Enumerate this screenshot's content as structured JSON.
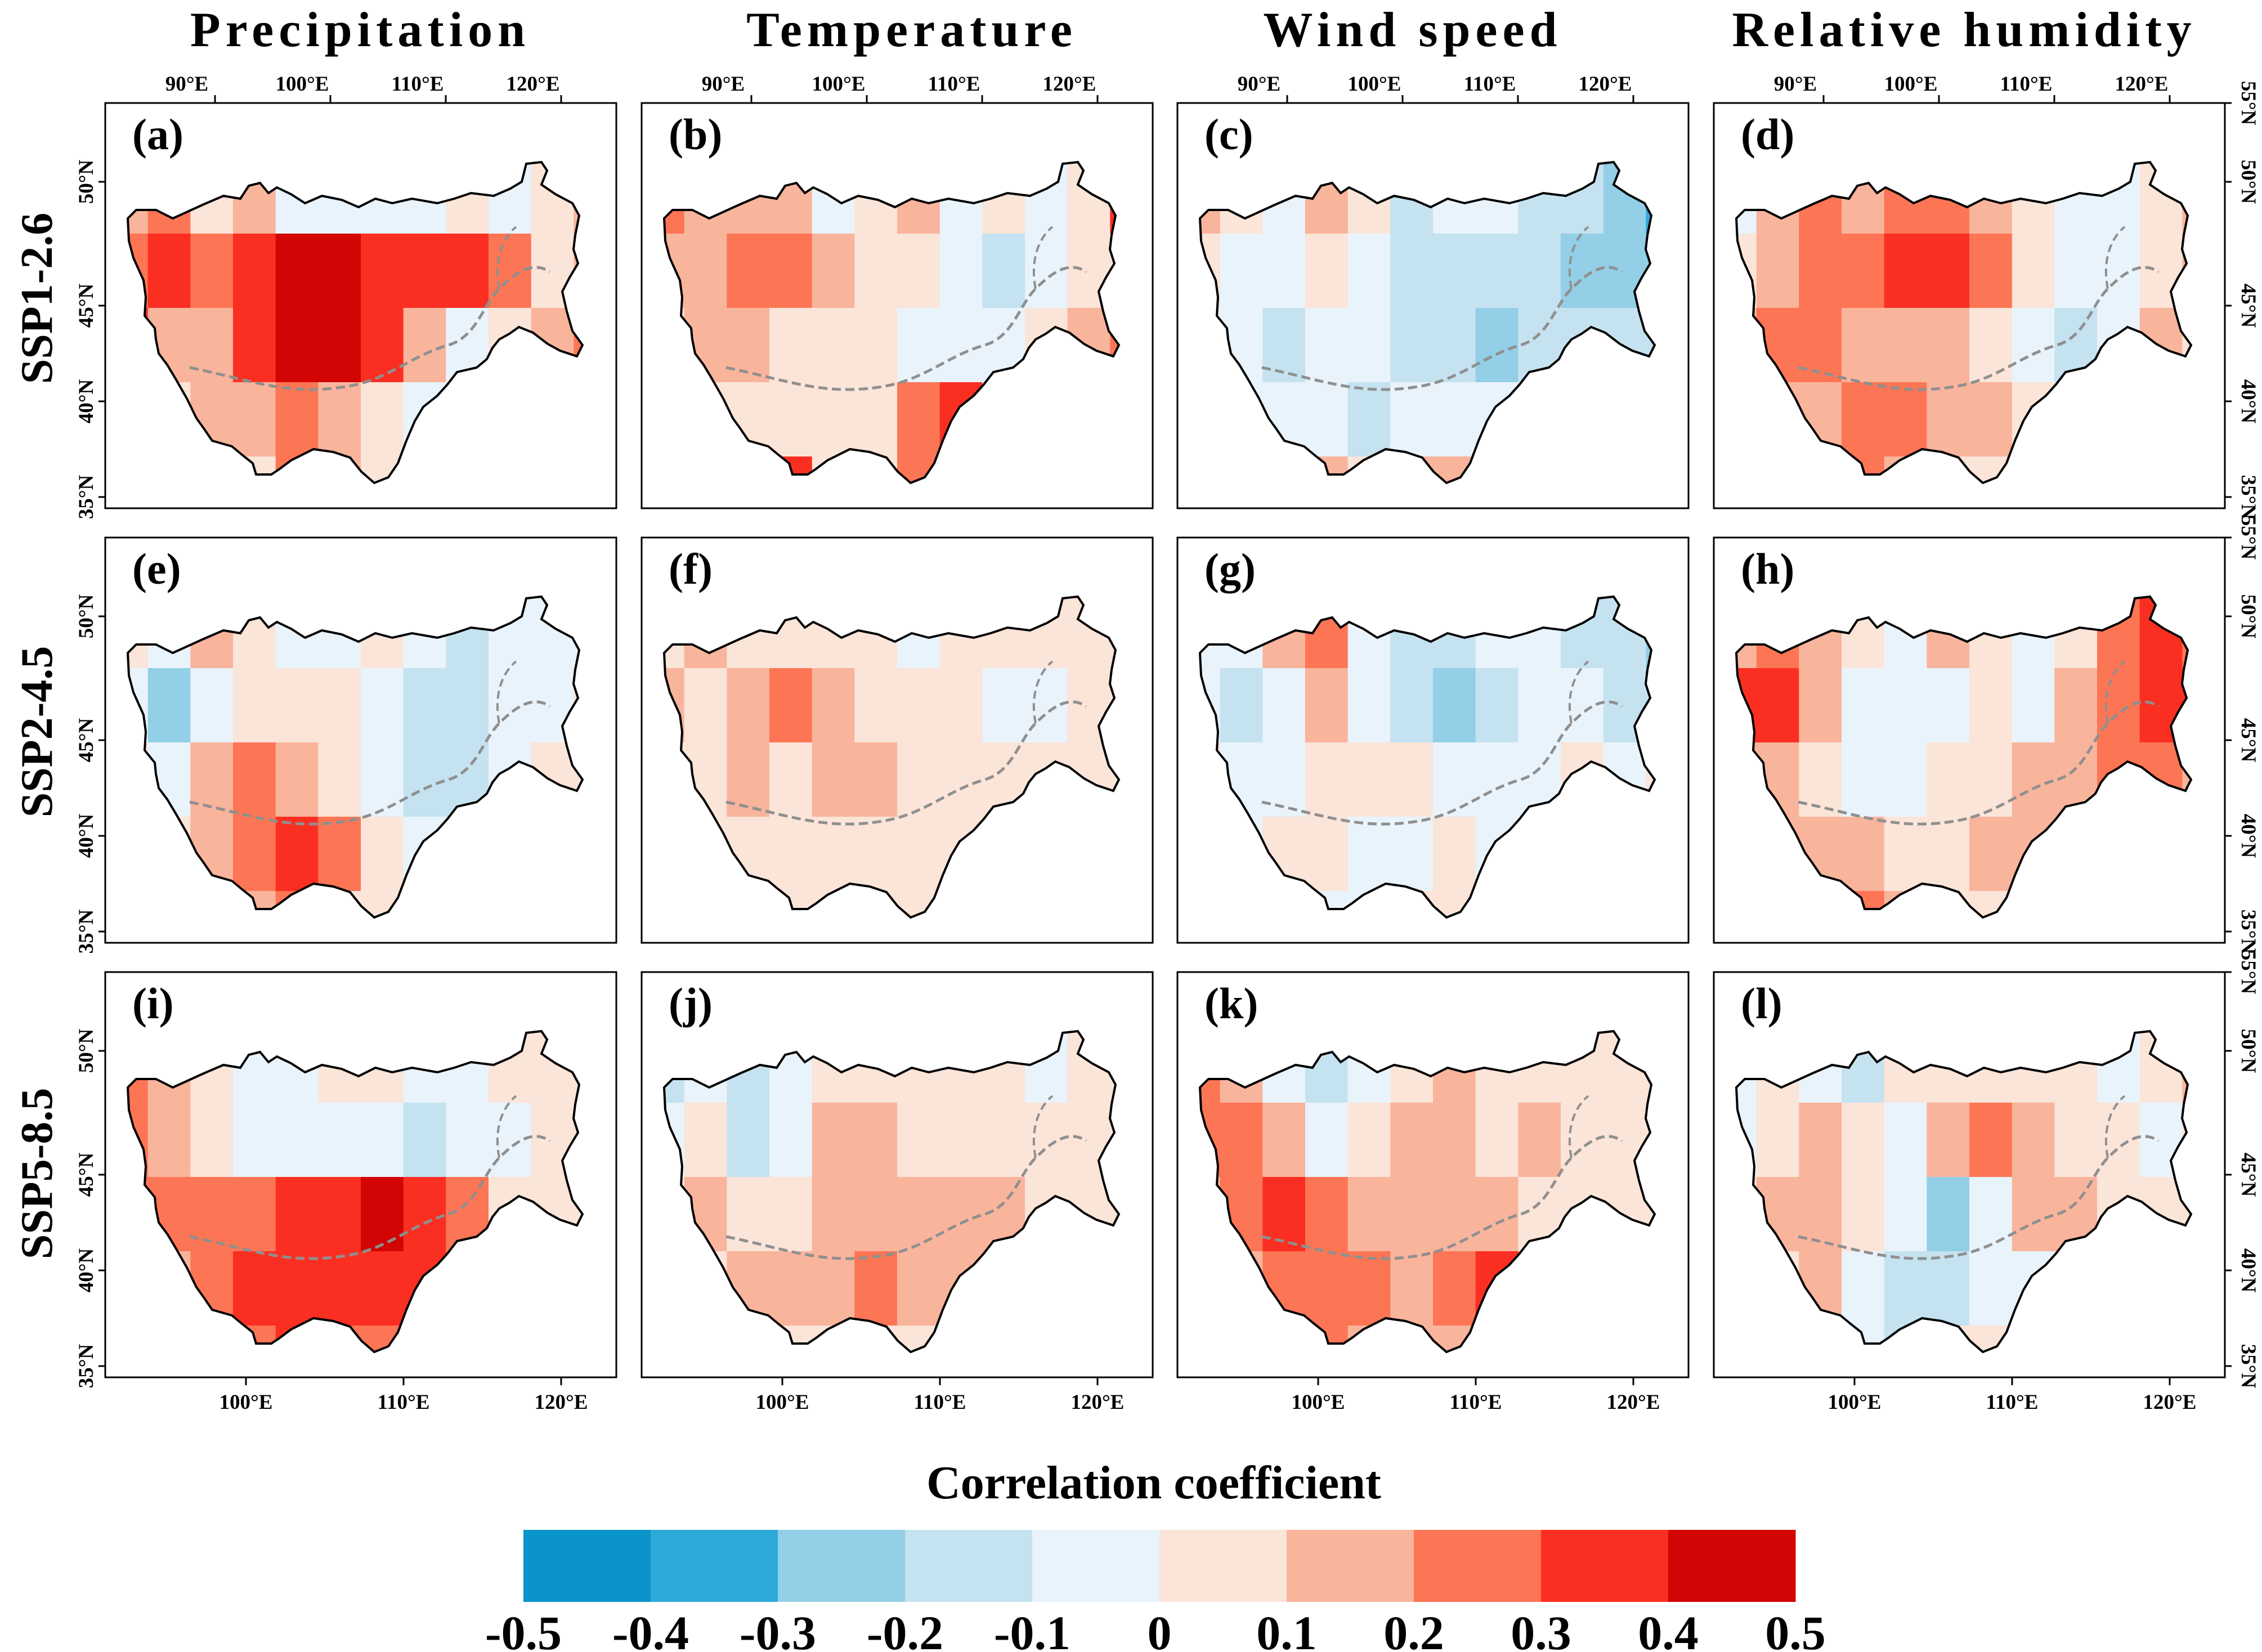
{
  "columns": [
    {
      "title": "Precipitation"
    },
    {
      "title": "Temperature"
    },
    {
      "title": "Wind speed"
    },
    {
      "title": "Relative humidity"
    }
  ],
  "rows": [
    {
      "label": "SSP1-2.6"
    },
    {
      "label": "SSP2-4.5"
    },
    {
      "label": "SSP5-8.5"
    }
  ],
  "panels": [
    {
      "label": "(a)",
      "column": "Precipitation",
      "scenario": "SSP1-2.6",
      "pattern": [
        [
          0.1,
          0.2,
          0.0,
          0.1,
          -0.1,
          -0.1,
          -0.1,
          -0.1,
          0.0,
          -0.1,
          0.0,
          0.1
        ],
        [
          0.2,
          0.3,
          0.2,
          0.3,
          0.4,
          0.4,
          0.3,
          0.3,
          0.3,
          0.2,
          0.0,
          0.1
        ],
        [
          0.3,
          0.1,
          0.1,
          0.3,
          0.4,
          0.4,
          0.3,
          0.1,
          -0.1,
          0.0,
          0.1,
          0.2
        ],
        [
          0.0,
          0.0,
          0.1,
          0.1,
          0.2,
          0.1,
          0.0,
          -0.1,
          -0.1,
          0.0,
          0.0,
          0.0
        ],
        [
          0.0,
          0.0,
          0.0,
          0.0,
          0.2,
          0.1,
          0.0,
          0.0,
          0.0,
          0.0,
          0.0,
          0.0
        ]
      ]
    },
    {
      "label": "(b)",
      "column": "Temperature",
      "scenario": "SSP1-2.6",
      "pattern": [
        [
          0.2,
          0.1,
          0.1,
          0.1,
          -0.1,
          0.0,
          0.1,
          -0.1,
          0.0,
          -0.1,
          0.0,
          0.3
        ],
        [
          0.1,
          0.1,
          0.2,
          0.2,
          0.1,
          0.0,
          0.0,
          -0.1,
          -0.2,
          -0.1,
          0.0,
          0.0
        ],
        [
          0.0,
          0.1,
          0.1,
          0.0,
          0.0,
          0.0,
          -0.1,
          -0.1,
          -0.1,
          0.0,
          0.1,
          0.2
        ],
        [
          0.0,
          0.0,
          0.0,
          0.0,
          0.0,
          0.0,
          0.2,
          0.3,
          0.0,
          0.0,
          0.0,
          0.0
        ],
        [
          0.0,
          0.0,
          0.0,
          0.3,
          0.0,
          0.0,
          0.2,
          0.2,
          0.0,
          0.0,
          0.0,
          0.0
        ]
      ]
    },
    {
      "label": "(c)",
      "column": "Wind speed",
      "scenario": "SSP1-2.6",
      "pattern": [
        [
          0.1,
          0.0,
          -0.1,
          0.1,
          0.0,
          -0.2,
          -0.1,
          -0.1,
          -0.2,
          -0.2,
          -0.3,
          -0.4
        ],
        [
          0.0,
          -0.1,
          -0.1,
          0.0,
          -0.1,
          -0.2,
          -0.2,
          -0.2,
          -0.2,
          -0.3,
          -0.3,
          -0.3
        ],
        [
          -0.1,
          -0.1,
          -0.2,
          -0.1,
          -0.1,
          -0.2,
          -0.2,
          -0.3,
          -0.2,
          -0.2,
          -0.2,
          -0.2
        ],
        [
          0.0,
          -0.1,
          -0.1,
          -0.1,
          -0.2,
          -0.1,
          -0.1,
          -0.1,
          -0.1,
          0.0,
          -0.1,
          -0.2
        ],
        [
          0.0,
          0.0,
          0.0,
          0.1,
          0.0,
          0.1,
          0.1,
          0.0,
          0.0,
          0.0,
          0.0,
          0.0
        ]
      ]
    },
    {
      "label": "(d)",
      "column": "Relative humidity",
      "scenario": "SSP1-2.6",
      "pattern": [
        [
          -0.1,
          0.1,
          0.2,
          0.1,
          0.2,
          0.2,
          0.1,
          0.0,
          -0.1,
          -0.1,
          0.0,
          0.1
        ],
        [
          0.0,
          0.1,
          0.2,
          0.2,
          0.3,
          0.3,
          0.2,
          0.0,
          -0.1,
          -0.1,
          0.0,
          0.1
        ],
        [
          0.1,
          0.2,
          0.2,
          0.1,
          0.1,
          0.1,
          0.0,
          -0.1,
          -0.2,
          -0.1,
          0.1,
          0.0
        ],
        [
          0.0,
          0.1,
          0.1,
          0.2,
          0.2,
          0.1,
          0.1,
          0.0,
          0.0,
          0.0,
          0.0,
          0.0
        ],
        [
          0.0,
          0.0,
          0.1,
          0.2,
          0.1,
          0.0,
          0.0,
          0.0,
          0.0,
          0.0,
          0.0,
          0.0
        ]
      ]
    },
    {
      "label": "(e)",
      "column": "Precipitation",
      "scenario": "SSP2-4.5",
      "pattern": [
        [
          0.0,
          -0.1,
          0.1,
          0.0,
          -0.1,
          -0.1,
          0.0,
          -0.1,
          -0.2,
          -0.1,
          -0.1,
          -0.1
        ],
        [
          -0.1,
          -0.3,
          -0.1,
          0.0,
          0.0,
          0.0,
          -0.1,
          -0.2,
          -0.2,
          -0.1,
          -0.1,
          0.0
        ],
        [
          0.0,
          -0.1,
          0.1,
          0.2,
          0.1,
          0.0,
          -0.1,
          -0.2,
          -0.2,
          -0.1,
          0.0,
          0.0
        ],
        [
          0.0,
          0.0,
          0.1,
          0.2,
          0.3,
          0.2,
          0.0,
          -0.1,
          -0.1,
          0.0,
          0.0,
          0.0
        ],
        [
          0.0,
          0.0,
          0.0,
          0.1,
          0.2,
          0.0,
          0.0,
          0.0,
          0.0,
          0.0,
          0.0,
          0.0
        ]
      ]
    },
    {
      "label": "(f)",
      "column": "Temperature",
      "scenario": "SSP2-4.5",
      "pattern": [
        [
          0.0,
          0.1,
          0.0,
          0.0,
          0.0,
          0.0,
          -0.1,
          0.0,
          0.0,
          0.0,
          0.0,
          0.0
        ],
        [
          0.1,
          0.0,
          0.1,
          0.2,
          0.1,
          0.0,
          0.0,
          0.0,
          -0.1,
          -0.1,
          0.0,
          0.0
        ],
        [
          0.0,
          0.0,
          0.1,
          0.0,
          0.1,
          0.1,
          0.0,
          0.0,
          0.0,
          0.0,
          0.0,
          0.0
        ],
        [
          0.0,
          0.0,
          0.0,
          0.0,
          0.0,
          0.0,
          0.0,
          0.0,
          0.0,
          0.0,
          0.1,
          0.1
        ],
        [
          0.0,
          0.0,
          0.0,
          0.0,
          0.0,
          0.0,
          0.0,
          0.0,
          0.0,
          0.0,
          0.0,
          0.0
        ]
      ]
    },
    {
      "label": "(g)",
      "column": "Wind speed",
      "scenario": "SSP2-4.5",
      "pattern": [
        [
          -0.1,
          -0.1,
          0.1,
          0.2,
          -0.1,
          -0.2,
          -0.2,
          -0.1,
          -0.1,
          -0.2,
          -0.2,
          -0.3
        ],
        [
          -0.1,
          -0.2,
          -0.1,
          0.1,
          -0.1,
          -0.2,
          -0.3,
          -0.2,
          -0.1,
          -0.1,
          -0.2,
          -0.2
        ],
        [
          0.0,
          -0.1,
          -0.1,
          0.0,
          0.0,
          0.0,
          -0.1,
          -0.1,
          -0.1,
          0.0,
          -0.1,
          0.0
        ],
        [
          -0.1,
          -0.1,
          0.0,
          0.0,
          -0.1,
          -0.1,
          0.0,
          -0.1,
          -0.1,
          0.0,
          -0.1,
          0.0
        ],
        [
          0.0,
          -0.1,
          0.0,
          -0.1,
          -0.1,
          0.0,
          0.0,
          0.0,
          0.0,
          0.0,
          0.0,
          0.0
        ]
      ]
    },
    {
      "label": "(h)",
      "column": "Relative humidity",
      "scenario": "SSP2-4.5",
      "pattern": [
        [
          0.1,
          0.2,
          0.1,
          0.0,
          -0.1,
          0.1,
          0.0,
          -0.1,
          0.0,
          0.2,
          0.3,
          0.2
        ],
        [
          0.3,
          0.3,
          0.1,
          -0.1,
          -0.1,
          -0.1,
          0.0,
          -0.1,
          0.1,
          0.2,
          0.3,
          0.3
        ],
        [
          0.1,
          0.1,
          0.0,
          -0.1,
          -0.1,
          0.0,
          0.0,
          0.1,
          0.1,
          0.2,
          0.2,
          0.1
        ],
        [
          0.0,
          0.1,
          0.1,
          0.1,
          0.0,
          0.0,
          0.1,
          0.1,
          0.1,
          0.1,
          0.0,
          0.0
        ],
        [
          0.0,
          0.0,
          0.1,
          0.2,
          0.1,
          0.0,
          0.0,
          0.0,
          0.0,
          0.0,
          0.0,
          0.0
        ]
      ]
    },
    {
      "label": "(i)",
      "column": "Precipitation",
      "scenario": "SSP5-8.5",
      "pattern": [
        [
          0.2,
          0.1,
          0.0,
          -0.1,
          -0.1,
          0.0,
          0.0,
          -0.1,
          -0.1,
          0.0,
          0.0,
          0.0
        ],
        [
          0.2,
          0.1,
          0.0,
          -0.1,
          -0.1,
          -0.1,
          -0.1,
          -0.2,
          -0.1,
          -0.1,
          0.0,
          0.0
        ],
        [
          0.2,
          0.2,
          0.2,
          0.2,
          0.3,
          0.3,
          0.4,
          0.3,
          0.2,
          0.0,
          0.0,
          0.0
        ],
        [
          0.0,
          0.1,
          0.2,
          0.3,
          0.3,
          0.3,
          0.3,
          0.3,
          0.2,
          0.0,
          0.0,
          0.0
        ],
        [
          0.0,
          0.0,
          0.2,
          0.2,
          0.3,
          0.2,
          0.2,
          0.0,
          0.0,
          0.0,
          0.0,
          0.0
        ]
      ]
    },
    {
      "label": "(j)",
      "column": "Temperature",
      "scenario": "SSP5-8.5",
      "pattern": [
        [
          -0.2,
          -0.1,
          -0.2,
          -0.1,
          0.0,
          0.0,
          0.0,
          0.0,
          0.0,
          -0.1,
          0.0,
          0.0
        ],
        [
          -0.1,
          0.0,
          -0.2,
          -0.1,
          0.1,
          0.1,
          0.0,
          0.0,
          0.0,
          0.0,
          0.0,
          0.0
        ],
        [
          0.0,
          0.1,
          0.0,
          0.0,
          0.1,
          0.1,
          0.1,
          0.1,
          0.1,
          0.0,
          0.0,
          0.0
        ],
        [
          0.0,
          0.0,
          0.1,
          0.1,
          0.1,
          0.2,
          0.1,
          0.1,
          0.1,
          0.0,
          0.1,
          0.2
        ],
        [
          0.0,
          0.0,
          0.0,
          0.0,
          0.0,
          0.0,
          0.0,
          0.0,
          0.0,
          0.0,
          0.0,
          0.0
        ]
      ]
    },
    {
      "label": "(k)",
      "column": "Wind speed",
      "scenario": "SSP5-8.5",
      "pattern": [
        [
          0.2,
          0.1,
          -0.1,
          -0.2,
          -0.1,
          0.0,
          0.1,
          0.0,
          0.0,
          0.0,
          0.0,
          0.0
        ],
        [
          0.2,
          0.2,
          0.1,
          -0.1,
          0.0,
          0.1,
          0.1,
          0.0,
          0.1,
          0.0,
          0.0,
          0.0
        ],
        [
          0.1,
          0.2,
          0.3,
          0.2,
          0.1,
          0.1,
          0.1,
          0.1,
          0.0,
          0.0,
          0.0,
          0.0
        ],
        [
          0.0,
          0.1,
          0.2,
          0.2,
          0.2,
          0.1,
          0.2,
          0.3,
          0.2,
          0.0,
          0.0,
          0.0
        ],
        [
          0.0,
          0.0,
          0.1,
          0.2,
          0.1,
          0.1,
          0.1,
          0.3,
          0.0,
          0.0,
          0.0,
          0.0
        ]
      ]
    },
    {
      "label": "(l)",
      "column": "Relative humidity",
      "scenario": "SSP5-8.5",
      "pattern": [
        [
          -0.1,
          0.0,
          -0.1,
          -0.2,
          0.0,
          0.0,
          0.0,
          0.0,
          0.0,
          -0.1,
          0.0,
          0.1
        ],
        [
          -0.1,
          0.0,
          0.1,
          0.0,
          -0.1,
          0.1,
          0.2,
          0.1,
          0.0,
          0.0,
          -0.1,
          0.0
        ],
        [
          0.0,
          0.1,
          0.1,
          0.0,
          -0.1,
          -0.3,
          -0.1,
          0.1,
          0.1,
          0.0,
          0.0,
          0.0
        ],
        [
          0.0,
          0.0,
          0.1,
          -0.1,
          -0.2,
          -0.2,
          -0.1,
          -0.1,
          0.0,
          0.0,
          0.0,
          0.0
        ],
        [
          0.0,
          0.0,
          0.0,
          -0.1,
          -0.2,
          0.0,
          0.0,
          0.0,
          0.0,
          0.0,
          0.0,
          0.0
        ]
      ]
    }
  ],
  "top_lon_ticks": [
    "90°E",
    "100°E",
    "110°E",
    "120°E"
  ],
  "bottom_lon_ticks": [
    "100°E",
    "110°E",
    "120°E"
  ],
  "lat_ticks": [
    "55°N",
    "50°N",
    "45°N",
    "40°N",
    "35°N"
  ],
  "colorbar": {
    "title": "Correlation  coefficient",
    "tick_labels": [
      "-0.5",
      "-0.4",
      "-0.3",
      "-0.2",
      "-0.1",
      "0",
      "0.1",
      "0.2",
      "0.3",
      "0.4",
      "0.5"
    ],
    "colors": [
      "#0a94c9",
      "#2eaad8",
      "#93cfe6",
      "#c5e2f0",
      "#e9f3fb",
      "#fbe4d8",
      "#f9b49c",
      "#fc7555",
      "#fa2f22",
      "#d20404"
    ]
  }
}
